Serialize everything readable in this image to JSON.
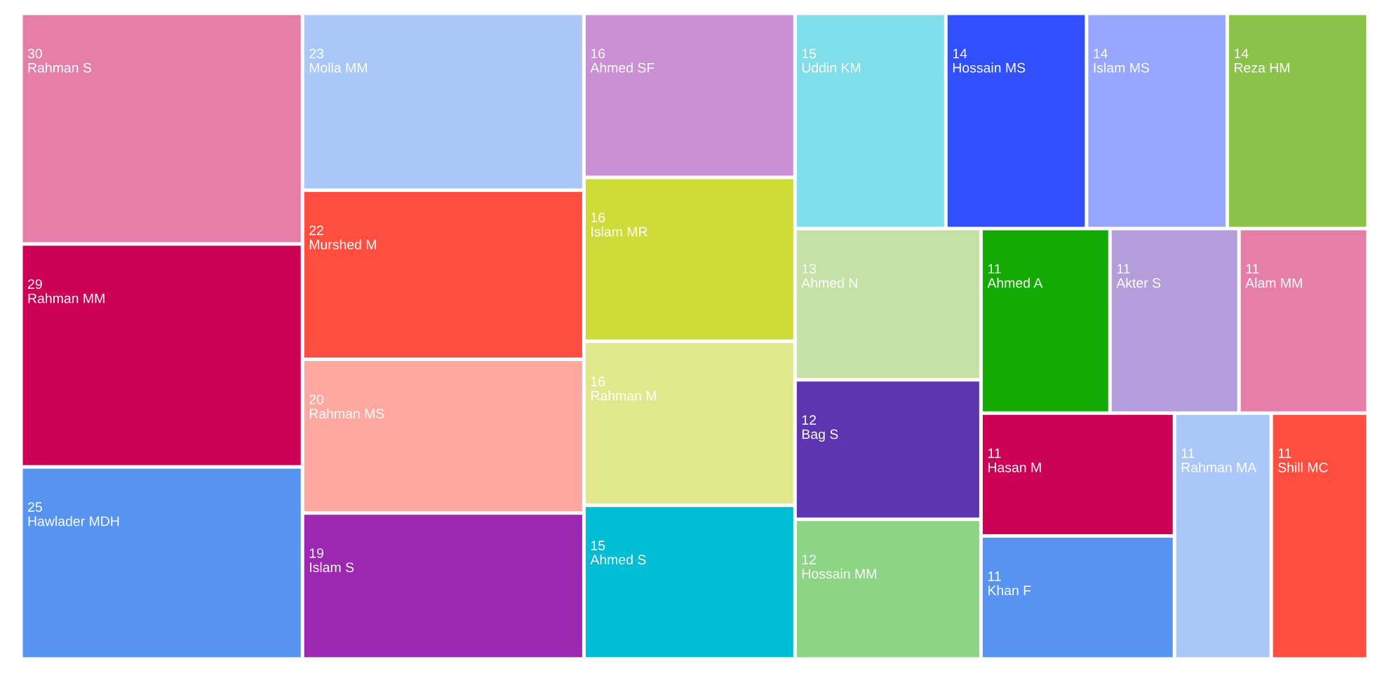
{
  "chart_data": {
    "type": "other",
    "data_labels": true,
    "categories": [
      "Rahman S",
      "Rahman MM",
      "Hawlader MDH",
      "Molla MM",
      "Murshed M",
      "Rahman MS",
      "Islam S",
      "Ahmed SF",
      "Islam MR",
      "Rahman M",
      "Ahmed S",
      "Uddin KM",
      "Hossain MS",
      "Islam MS",
      "Reza HM",
      "Ahmed N",
      "Bag S",
      "Hossain MM",
      "Ahmed A",
      "Akter S",
      "Alam MM",
      "Hasan M",
      "Khan F",
      "Rahman MA",
      "Shill MC"
    ],
    "values": [
      30,
      29,
      25,
      23,
      22,
      20,
      19,
      16,
      16,
      16,
      15,
      15,
      14,
      14,
      14,
      13,
      12,
      12,
      11,
      11,
      11,
      11,
      11,
      11,
      11
    ],
    "colors": [
      "#e57fa9",
      "#cc0055",
      "#5794f2",
      "#a9c8f9",
      "#ff4d40",
      "#ffa8a0",
      "#9c27b0",
      "#cb8fd5",
      "#cddc39",
      "#e1e88c",
      "#00bcd4",
      "#80deea",
      "#304ffe",
      "#97a6fe",
      "#8bc34a",
      "#c5e1a5",
      "#5e35b1",
      "#8bd585",
      "#13aa04",
      "#b39ddb",
      "#e57fa9",
      "#cc0055",
      "#5794f2",
      "#a9c8f9",
      "#ff4d40"
    ]
  }
}
